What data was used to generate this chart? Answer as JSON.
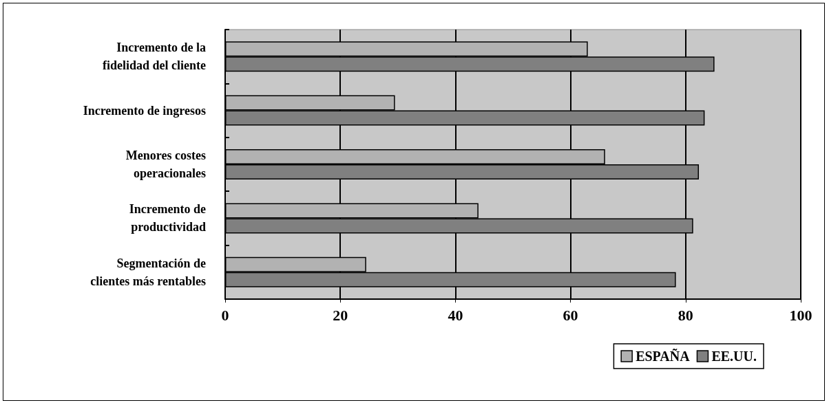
{
  "chart_data": {
    "type": "bar",
    "orientation": "horizontal",
    "categories": [
      "Incremento de la\nfidelidad del cliente",
      "Incremento de ingresos",
      "Menores costes\noperacionales",
      "Incremento de\nproductividad",
      "Segmentación de\nclientes más rentables"
    ],
    "series": [
      {
        "name": "ESPAÑA",
        "color": "#b2b2b2",
        "values": [
          63,
          29.5,
          66,
          44,
          24.5
        ]
      },
      {
        "name": "EE.UU.",
        "color": "#808080",
        "values": [
          85,
          83.3,
          82.3,
          81.3,
          78.3
        ]
      }
    ],
    "xlim": [
      0,
      100
    ],
    "xticks": [
      0,
      20,
      40,
      60,
      80,
      100
    ],
    "grid": "x",
    "legend": "bottom right"
  }
}
